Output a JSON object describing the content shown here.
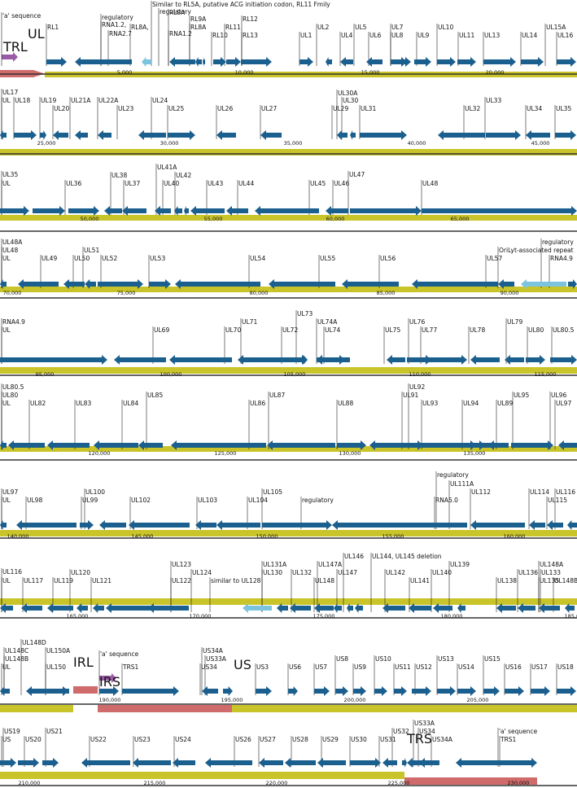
{
  "colors": {
    "gene": "#1b5f8e",
    "gene_light": "#7cc4dd",
    "repeat_feature": "#9a5aa6",
    "region_ul": "#c9c42a",
    "region_repeat": "#cf6b6b",
    "separator": "#333333",
    "leader": "#222222"
  },
  "diagram": {
    "rows": [
      {
        "ticks": [
          "5,000",
          "10,000",
          "15,000",
          "20,000"
        ],
        "region_labels": [
          {
            "text": "TRL",
            "size": "big"
          },
          {
            "text": "UL",
            "size": "big"
          }
        ],
        "labels": [
          "'a' sequence",
          "RL1",
          "regulatory",
          "RNA1.2,",
          "RNA2.7",
          "RL8A,",
          "Similar to RL5A, putative ACG initiation codon, RL11 Fmily",
          "RL9A",
          "regulatory",
          "RL9A",
          "RNA1.2",
          "RL8A",
          "RL10",
          "RL11",
          "RL12",
          "RL13",
          "UL1",
          "UL2",
          "UL4",
          "UL5",
          "UL6",
          "UL7",
          "UL8",
          "UL9",
          "UL10",
          "UL11",
          "UL13",
          "UL14",
          "UL15A",
          "UL16"
        ]
      },
      {
        "ticks": [
          "25,000",
          "30,000",
          "35,000",
          "40,000",
          "45,000"
        ],
        "labels": [
          "UL17",
          "UL",
          "UL18",
          "UL19",
          "UL20",
          "UL21A",
          "UL22A",
          "UL23",
          "UL24",
          "UL25",
          "UL26",
          "UL27",
          "UL30A",
          "UL29",
          "UL30",
          "UL31",
          "UL32",
          "UL33",
          "UL34",
          "UL35"
        ]
      },
      {
        "ticks": [
          "50,000",
          "55,000",
          "60,000",
          "65,000"
        ],
        "labels": [
          "UL35",
          "UL",
          "UL36",
          "UL38",
          "UL37",
          "UL41A",
          "UL40",
          "UL42",
          "UL43",
          "UL44",
          "UL45",
          "UL46",
          "UL47",
          "UL48"
        ]
      },
      {
        "ticks": [
          "70,000",
          "75,000",
          "80,000",
          "85,000",
          "90,000"
        ],
        "labels": [
          "UL48A",
          "UL48",
          "UL",
          "UL49",
          "UL50",
          "UL51",
          "UL52",
          "UL53",
          "UL54",
          "UL55",
          "UL56",
          "UL57",
          "regulatory",
          "OriLyt-associated repeat",
          "RNA4.9"
        ]
      },
      {
        "ticks": [
          "95,000",
          "100,000",
          "105,000",
          "110,000",
          "115,000"
        ],
        "labels": [
          "RNA4.9",
          "UL",
          "UL69",
          "UL70",
          "UL71",
          "UL72",
          "UL73",
          "UL74A",
          "UL74",
          "UL75",
          "UL76",
          "UL77",
          "UL78",
          "UL79",
          "UL80",
          "UL80.5"
        ]
      },
      {
        "ticks": [
          "120,000",
          "125,000",
          "130,000",
          "135,000"
        ],
        "labels": [
          "UL80.5",
          "UL80",
          "UL",
          "UL82",
          "UL83",
          "UL84",
          "UL85",
          "UL86",
          "UL87",
          "UL88",
          "UL92",
          "UL91",
          "UL93",
          "UL94",
          "UL89",
          "UL95",
          "UL96",
          "UL97"
        ]
      },
      {
        "ticks": [
          "140,000",
          "145,000",
          "150,000",
          "155,000",
          "160,000"
        ],
        "labels": [
          "UL97",
          "UL",
          "UL98",
          "UL99",
          "UL100",
          "UL102",
          "UL103",
          "UL105",
          "UL104",
          "regulatory",
          "regulatory",
          "UL111A",
          "RNA5.0",
          "UL112",
          "UL114",
          "UL115",
          "UL116"
        ]
      },
      {
        "ticks": [
          "165,000",
          "170,000",
          "175,000",
          "180,000",
          "185,000"
        ],
        "labels": [
          "UL116",
          "UL",
          "UL117",
          "UL119",
          "UL120",
          "UL121",
          "UL123",
          "UL124",
          "UL122",
          "similar to UL128",
          "UL131A",
          "UL130",
          "UL132",
          "UL147A",
          "UL148",
          "UL147",
          "UL146",
          "UL144, UL145 deletion",
          "UL142",
          "UL141",
          "UL140",
          "UL139",
          "UL138",
          "UL136",
          "UL135",
          "UL133",
          "UL148A",
          "UL148B"
        ]
      },
      {
        "ticks": [
          "190,000",
          "195,000",
          "200,000",
          "205,000"
        ],
        "region_labels": [
          {
            "text": "IRL",
            "size": "big"
          },
          {
            "text": "IRS",
            "size": "big"
          },
          {
            "text": "US",
            "size": "big"
          }
        ],
        "labels": [
          "UL148D",
          "UL148C",
          "UL148B",
          "UL",
          "UL150A",
          "UL150",
          "'a' sequence",
          "TRS1",
          "US34A",
          "US33A",
          "US34",
          "US3",
          "US6",
          "US7",
          "US8",
          "US9",
          "US10",
          "US11",
          "US12",
          "US13",
          "US14",
          "US15",
          "US16",
          "US17",
          "US18"
        ]
      },
      {
        "ticks": [
          "210,000",
          "215,000",
          "220,000",
          "225,000",
          "230,000"
        ],
        "region_labels": [
          {
            "text": "TRS",
            "size": "big"
          }
        ],
        "labels": [
          "US19",
          "US",
          "US20",
          "US21",
          "US22",
          "US23",
          "US24",
          "US26",
          "US27",
          "US28",
          "US29",
          "US30",
          "US31",
          "US32",
          "US33A",
          "US34",
          "US34A",
          "'a' sequence",
          "TRS1"
        ]
      }
    ]
  }
}
